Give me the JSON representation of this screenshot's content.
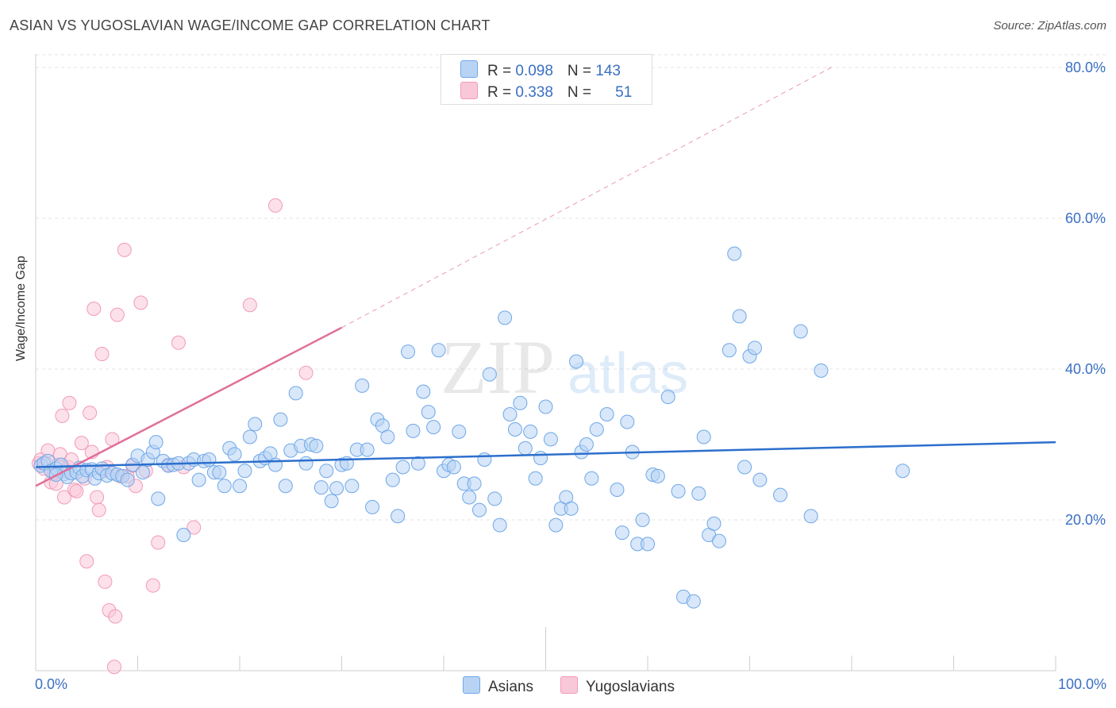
{
  "header": {
    "title": "ASIAN VS YUGOSLAVIAN WAGE/INCOME GAP CORRELATION CHART",
    "source": "Source: ZipAtlas.com"
  },
  "legend": {
    "row1": {
      "r_label": "R = ",
      "r_value": "0.098",
      "n_label": "N = ",
      "n_value": "143"
    },
    "row2": {
      "r_label": "R = ",
      "r_value": "0.338",
      "n_label": "N = ",
      "n_value": "51"
    }
  },
  "bottom_legend": {
    "asians": "Asians",
    "yugoslavians": "Yugoslavians"
  },
  "watermark": {
    "zip": "ZIP",
    "atlas": "atlas"
  },
  "colors": {
    "asian": "#6fa8e8",
    "asian_fill": "#b8d3f4",
    "yugo": "#f39ab8",
    "yugo_fill": "#f9c8d8",
    "asian_line": "#2d6fcc",
    "yugo_line": "#e0709a",
    "accent": "#3a6fc4"
  },
  "chart_data": {
    "type": "scatter",
    "title": "ASIAN VS YUGOSLAVIAN WAGE/INCOME GAP CORRELATION CHART",
    "xlabel": "",
    "ylabel": "Wage/Income Gap",
    "xlim": [
      0,
      100
    ],
    "ylim": [
      0,
      80
    ],
    "x_tick_labels": [
      "0.0%",
      "100.0%"
    ],
    "y_ticks": [
      20,
      40,
      60,
      80
    ],
    "y_tick_labels": [
      "20.0%",
      "40.0%",
      "60.0%",
      "80.0%"
    ],
    "grid": true,
    "legend_position": "top-center",
    "series": [
      {
        "name": "Asians",
        "r": 0.098,
        "n": 143,
        "trend": {
          "x": [
            0,
            100
          ],
          "y": [
            27.0,
            30.3
          ]
        },
        "points": [
          [
            0.5,
            27.2
          ],
          [
            0.8,
            27.5
          ],
          [
            1.2,
            27.8
          ],
          [
            1.5,
            26.5
          ],
          [
            2.0,
            26.8
          ],
          [
            2.5,
            27.3
          ],
          [
            2.8,
            26.1
          ],
          [
            3.1,
            25.7
          ],
          [
            3.5,
            26.2
          ],
          [
            4.0,
            26.3
          ],
          [
            4.3,
            26.9
          ],
          [
            4.6,
            25.8
          ],
          [
            5.0,
            26.6
          ],
          [
            5.5,
            26.7
          ],
          [
            5.8,
            25.5
          ],
          [
            6.2,
            26.2
          ],
          [
            6.5,
            26.8
          ],
          [
            7.0,
            25.9
          ],
          [
            7.5,
            26.2
          ],
          [
            8.0,
            26.0
          ],
          [
            8.5,
            25.8
          ],
          [
            9.0,
            25.3
          ],
          [
            9.5,
            27.3
          ],
          [
            10.0,
            28.5
          ],
          [
            10.5,
            26.3
          ],
          [
            11.0,
            28.0
          ],
          [
            11.5,
            29.0
          ],
          [
            11.8,
            30.3
          ],
          [
            12.0,
            22.8
          ],
          [
            12.5,
            27.8
          ],
          [
            13.0,
            27.2
          ],
          [
            13.5,
            27.3
          ],
          [
            14.0,
            27.5
          ],
          [
            14.5,
            18.0
          ],
          [
            15.0,
            27.5
          ],
          [
            15.5,
            28.0
          ],
          [
            16.0,
            25.3
          ],
          [
            16.5,
            27.8
          ],
          [
            17.0,
            28.0
          ],
          [
            17.5,
            26.3
          ],
          [
            18.0,
            26.3
          ],
          [
            18.5,
            24.5
          ],
          [
            19.0,
            29.5
          ],
          [
            19.5,
            28.7
          ],
          [
            20.0,
            24.5
          ],
          [
            20.5,
            26.5
          ],
          [
            21.0,
            31.0
          ],
          [
            21.5,
            32.7
          ],
          [
            22.0,
            27.8
          ],
          [
            22.5,
            28.2
          ],
          [
            23.0,
            28.8
          ],
          [
            23.5,
            27.3
          ],
          [
            24.0,
            33.3
          ],
          [
            24.5,
            24.5
          ],
          [
            25.0,
            29.2
          ],
          [
            25.5,
            36.8
          ],
          [
            26.0,
            29.8
          ],
          [
            26.5,
            27.5
          ],
          [
            27.0,
            30.0
          ],
          [
            27.5,
            29.8
          ],
          [
            28.0,
            24.3
          ],
          [
            28.5,
            26.5
          ],
          [
            29.0,
            22.5
          ],
          [
            29.5,
            24.2
          ],
          [
            30.0,
            27.3
          ],
          [
            30.5,
            27.5
          ],
          [
            31.0,
            24.5
          ],
          [
            31.5,
            29.3
          ],
          [
            32.0,
            37.8
          ],
          [
            32.5,
            29.3
          ],
          [
            33.0,
            21.7
          ],
          [
            33.5,
            33.3
          ],
          [
            34.0,
            32.5
          ],
          [
            34.5,
            31.0
          ],
          [
            35.0,
            25.3
          ],
          [
            35.5,
            20.5
          ],
          [
            36.0,
            27.0
          ],
          [
            36.5,
            42.3
          ],
          [
            37.0,
            31.8
          ],
          [
            37.5,
            27.5
          ],
          [
            38.0,
            37.0
          ],
          [
            38.5,
            34.3
          ],
          [
            39.0,
            32.3
          ],
          [
            39.5,
            42.5
          ],
          [
            40.0,
            26.5
          ],
          [
            40.5,
            27.3
          ],
          [
            41.0,
            27.0
          ],
          [
            41.5,
            31.7
          ],
          [
            42.0,
            24.8
          ],
          [
            42.5,
            23.0
          ],
          [
            43.0,
            24.8
          ],
          [
            43.5,
            21.3
          ],
          [
            44.0,
            28.0
          ],
          [
            44.5,
            39.3
          ],
          [
            45.0,
            22.8
          ],
          [
            45.5,
            19.3
          ],
          [
            46.0,
            46.8
          ],
          [
            46.5,
            34.0
          ],
          [
            47.0,
            32.0
          ],
          [
            47.5,
            35.5
          ],
          [
            48.0,
            29.5
          ],
          [
            48.5,
            31.7
          ],
          [
            49.0,
            25.5
          ],
          [
            49.5,
            28.2
          ],
          [
            50.0,
            35.0
          ],
          [
            50.5,
            30.7
          ],
          [
            51.0,
            19.3
          ],
          [
            51.5,
            21.5
          ],
          [
            52.0,
            23.0
          ],
          [
            52.5,
            21.5
          ],
          [
            53.0,
            41.0
          ],
          [
            53.5,
            29.0
          ],
          [
            54.0,
            30.0
          ],
          [
            54.5,
            25.5
          ],
          [
            55.0,
            32.0
          ],
          [
            56.0,
            34.0
          ],
          [
            57.0,
            24.0
          ],
          [
            57.5,
            18.3
          ],
          [
            58.0,
            33.0
          ],
          [
            58.5,
            29.0
          ],
          [
            59.0,
            16.8
          ],
          [
            59.5,
            20.0
          ],
          [
            60.0,
            16.8
          ],
          [
            60.5,
            26.0
          ],
          [
            61.0,
            25.8
          ],
          [
            62.0,
            36.3
          ],
          [
            63.0,
            23.8
          ],
          [
            63.5,
            9.8
          ],
          [
            64.5,
            9.2
          ],
          [
            65.0,
            23.5
          ],
          [
            65.5,
            31.0
          ],
          [
            66.0,
            18.0
          ],
          [
            66.5,
            19.5
          ],
          [
            67.0,
            17.2
          ],
          [
            68.0,
            42.5
          ],
          [
            68.5,
            55.3
          ],
          [
            69.0,
            47.0
          ],
          [
            69.5,
            27.0
          ],
          [
            70.0,
            41.7
          ],
          [
            70.5,
            42.8
          ],
          [
            71.0,
            25.3
          ],
          [
            73.0,
            23.3
          ],
          [
            75.0,
            45.0
          ],
          [
            76.0,
            20.5
          ],
          [
            77.0,
            39.8
          ],
          [
            85.0,
            26.5
          ],
          [
            2.0,
            26.0
          ]
        ]
      },
      {
        "name": "Yugoslavians",
        "r": 0.338,
        "n": 51,
        "trend": {
          "x": [
            0,
            30
          ],
          "y": [
            24.5,
            45.5
          ]
        },
        "trend_extension": {
          "x": [
            30,
            78
          ],
          "y": [
            45.5,
            80
          ]
        },
        "points": [
          [
            0.3,
            27.5
          ],
          [
            0.5,
            28.0
          ],
          [
            0.8,
            26.8
          ],
          [
            1.0,
            27.5
          ],
          [
            1.2,
            29.2
          ],
          [
            1.5,
            25.0
          ],
          [
            1.8,
            26.2
          ],
          [
            2.0,
            24.8
          ],
          [
            2.2,
            27.3
          ],
          [
            2.4,
            28.7
          ],
          [
            2.6,
            33.8
          ],
          [
            2.8,
            23.0
          ],
          [
            3.0,
            26.5
          ],
          [
            3.2,
            27.0
          ],
          [
            3.3,
            35.5
          ],
          [
            3.5,
            28.0
          ],
          [
            3.8,
            24.0
          ],
          [
            4.0,
            23.8
          ],
          [
            4.5,
            30.2
          ],
          [
            4.8,
            25.5
          ],
          [
            5.0,
            14.5
          ],
          [
            5.3,
            34.2
          ],
          [
            5.5,
            29.0
          ],
          [
            5.7,
            48.0
          ],
          [
            6.0,
            23.0
          ],
          [
            6.2,
            21.3
          ],
          [
            6.5,
            42.0
          ],
          [
            6.7,
            26.5
          ],
          [
            6.8,
            11.8
          ],
          [
            7.0,
            27.0
          ],
          [
            7.2,
            8.0
          ],
          [
            7.5,
            30.7
          ],
          [
            7.7,
            0.5
          ],
          [
            7.8,
            7.2
          ],
          [
            8.0,
            47.2
          ],
          [
            8.3,
            25.8
          ],
          [
            8.7,
            55.8
          ],
          [
            9.0,
            25.8
          ],
          [
            9.5,
            27.2
          ],
          [
            9.8,
            24.5
          ],
          [
            10.3,
            48.8
          ],
          [
            10.8,
            26.5
          ],
          [
            11.5,
            11.3
          ],
          [
            12.0,
            17.0
          ],
          [
            13.0,
            27.3
          ],
          [
            14.0,
            43.5
          ],
          [
            14.5,
            27.0
          ],
          [
            15.5,
            19.0
          ],
          [
            21.0,
            48.5
          ],
          [
            23.5,
            61.7
          ],
          [
            26.5,
            39.5
          ]
        ]
      }
    ]
  }
}
